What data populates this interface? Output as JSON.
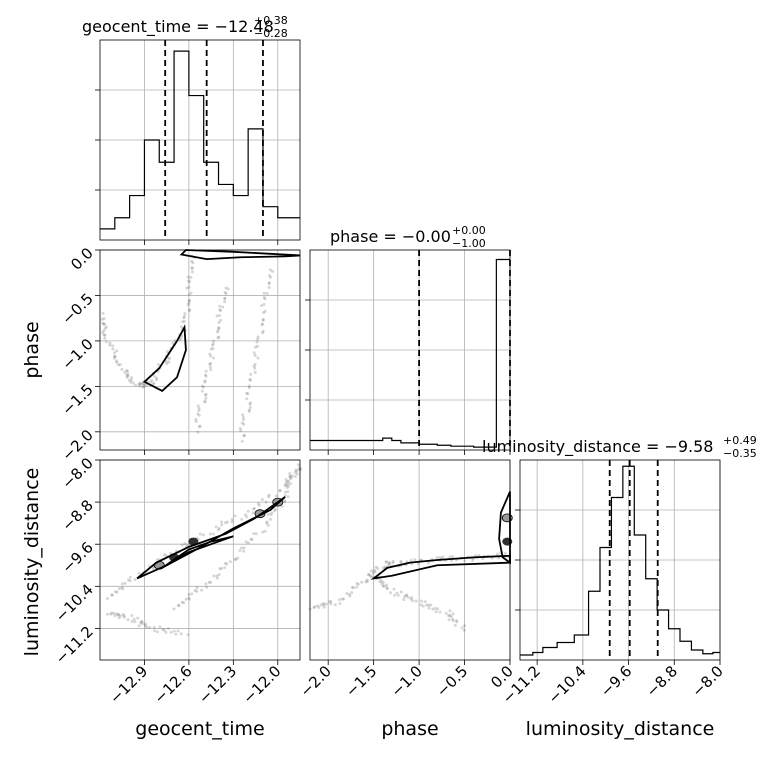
{
  "chart_data": [
    {
      "type": "histogram",
      "title_param": "geocent_time",
      "title_value": "−12.48",
      "title_plus": "+0.38",
      "title_minus": "−0.28",
      "x": [
        -13.15,
        -13.05,
        -12.95,
        -12.85,
        -12.75,
        -12.65,
        -12.55,
        -12.45,
        -12.35,
        -12.25,
        -12.15,
        -12.05,
        -11.95
      ],
      "values": [
        1,
        2,
        4,
        9,
        7,
        17,
        13,
        7,
        5,
        4,
        10,
        3,
        2
      ],
      "quantiles": [
        -12.76,
        -12.48,
        -12.1
      ],
      "xlim": [
        -13.2,
        -11.85
      ],
      "ymax": 18
    },
    {
      "type": "histogram",
      "title_param": "phase",
      "title_value": "−0.00",
      "title_plus": "+0.00",
      "title_minus": "−1.00",
      "x": [
        -1.45,
        -1.35,
        -1.25,
        -1.15,
        -1.05,
        -0.95,
        -0.85,
        -0.75,
        -0.55,
        -0.25,
        -0.05
      ],
      "values": [
        2,
        2.5,
        2,
        1.5,
        1.5,
        1.2,
        1.2,
        1,
        0.8,
        0.6,
        40
      ],
      "quantiles": [
        -1.0,
        -0.0
      ],
      "xlim": [
        -2.2,
        0.0
      ],
      "ymax": 42
    },
    {
      "type": "histogram",
      "title_param": "luminosity_distance",
      "title_value": "−9.58",
      "title_plus": "+0.49",
      "title_minus": "−0.35",
      "x": [
        -11.35,
        -11.2,
        -11.0,
        -10.7,
        -10.4,
        -10.2,
        -10.0,
        -9.8,
        -9.6,
        -9.4,
        -9.2,
        -9.0,
        -8.8,
        -8.6,
        -8.4,
        -8.2,
        -8.05
      ],
      "values": [
        0.4,
        0.6,
        1,
        1.4,
        2,
        5.5,
        9,
        13,
        15.5,
        10,
        6.5,
        4,
        2.5,
        1.5,
        0.8,
        0.5,
        0.6
      ],
      "quantiles": [
        -9.93,
        -9.58,
        -9.09
      ],
      "xlim": [
        -11.5,
        -8.0
      ],
      "ymax": 16
    },
    {
      "type": "scatter",
      "x_param": "geocent_time",
      "y_param": "phase",
      "xlim": [
        -13.2,
        -11.85
      ],
      "ylim": [
        -2.2,
        0.0
      ],
      "curves": [
        [
          [
            -12.58,
            -0.05
          ],
          [
            -12.6,
            -0.5
          ],
          [
            -12.64,
            -0.9
          ],
          [
            -12.75,
            -1.2
          ],
          [
            -12.85,
            -1.45
          ],
          [
            -12.95,
            -1.5
          ],
          [
            -13.05,
            -1.3
          ],
          [
            -13.15,
            -1.0
          ],
          [
            -13.2,
            -0.7
          ]
        ],
        [
          [
            -12.35,
            -0.4
          ],
          [
            -12.4,
            -0.8
          ],
          [
            -12.45,
            -1.2
          ],
          [
            -12.5,
            -1.6
          ],
          [
            -12.55,
            -2.0
          ]
        ],
        [
          [
            -12.05,
            -0.2
          ],
          [
            -12.1,
            -0.7
          ],
          [
            -12.15,
            -1.2
          ],
          [
            -12.2,
            -1.7
          ],
          [
            -12.25,
            -2.1
          ]
        ]
      ],
      "contours": [
        [
          [
            -12.78,
            -1.55
          ],
          [
            -12.9,
            -1.45
          ],
          [
            -12.8,
            -1.3
          ],
          [
            -12.68,
            -1.0
          ],
          [
            -12.63,
            -0.85
          ],
          [
            -12.62,
            -1.1
          ],
          [
            -12.68,
            -1.4
          ]
        ],
        [
          [
            -12.65,
            -0.05
          ],
          [
            -12.48,
            -0.1
          ],
          [
            -12.25,
            -0.08
          ],
          [
            -11.95,
            -0.07
          ],
          [
            -11.85,
            -0.06
          ],
          [
            -12.3,
            -0.02
          ],
          [
            -12.62,
            0.0
          ]
        ]
      ]
    },
    {
      "type": "scatter",
      "x_param": "geocent_time",
      "y_param": "luminosity_distance",
      "xlim": [
        -13.2,
        -11.85
      ],
      "ylim": [
        -11.8,
        -8.0
      ],
      "curves": [
        [
          [
            -13.15,
            -10.6
          ],
          [
            -12.95,
            -10.2
          ],
          [
            -12.7,
            -9.75
          ],
          [
            -12.45,
            -9.35
          ],
          [
            -12.2,
            -9.0
          ],
          [
            -11.95,
            -8.5
          ],
          [
            -11.85,
            -8.1
          ]
        ],
        [
          [
            -12.7,
            -10.8
          ],
          [
            -12.5,
            -10.4
          ],
          [
            -12.3,
            -9.9
          ],
          [
            -12.1,
            -9.3
          ],
          [
            -11.95,
            -8.7
          ],
          [
            -11.87,
            -8.1
          ]
        ],
        [
          [
            -13.15,
            -10.9
          ],
          [
            -13.0,
            -11.0
          ],
          [
            -12.85,
            -11.2
          ],
          [
            -12.6,
            -11.3
          ]
        ]
      ],
      "contours": [
        [
          [
            -12.95,
            -10.25
          ],
          [
            -12.82,
            -9.95
          ],
          [
            -12.6,
            -9.65
          ],
          [
            -12.35,
            -9.4
          ],
          [
            -12.15,
            -9.1
          ],
          [
            -11.95,
            -8.7
          ],
          [
            -12.05,
            -8.95
          ],
          [
            -12.3,
            -9.3
          ],
          [
            -12.55,
            -9.7
          ],
          [
            -12.75,
            -10.0
          ]
        ],
        [
          [
            -12.78,
            -10.05
          ],
          [
            -12.6,
            -9.75
          ],
          [
            -12.45,
            -9.6
          ],
          [
            -12.3,
            -9.45
          ],
          [
            -12.45,
            -9.55
          ],
          [
            -12.6,
            -9.7
          ]
        ]
      ],
      "blobs": [
        [
          -12.57,
          -9.55,
          "dark"
        ],
        [
          -12.7,
          -9.85,
          "dark"
        ],
        [
          -12.8,
          -10.0,
          "light"
        ],
        [
          -12.12,
          -9.02,
          "light"
        ],
        [
          -12.0,
          -8.8,
          "light"
        ]
      ]
    },
    {
      "type": "scatter",
      "x_param": "phase",
      "y_param": "luminosity_distance",
      "xlim": [
        -2.2,
        0.0
      ],
      "ylim": [
        -11.8,
        -8.0
      ],
      "curves": [
        [
          [
            -2.2,
            -10.8
          ],
          [
            -1.9,
            -10.7
          ],
          [
            -1.6,
            -10.3
          ],
          [
            -1.4,
            -10.0
          ],
          [
            -1.2,
            -9.95
          ],
          [
            -0.8,
            -9.9
          ],
          [
            -0.4,
            -9.85
          ],
          [
            0.0,
            -9.8
          ]
        ],
        [
          [
            -1.5,
            -10.2
          ],
          [
            -1.3,
            -10.5
          ],
          [
            -1.0,
            -10.7
          ],
          [
            -0.7,
            -10.9
          ],
          [
            -0.5,
            -11.2
          ]
        ]
      ],
      "contours": [
        [
          [
            -1.5,
            -10.25
          ],
          [
            -1.35,
            -10.05
          ],
          [
            -1.1,
            -9.95
          ],
          [
            -0.8,
            -9.9
          ],
          [
            -0.4,
            -9.85
          ],
          [
            0.0,
            -9.82
          ],
          [
            0.0,
            -9.95
          ],
          [
            -0.8,
            -10.0
          ],
          [
            -1.3,
            -10.2
          ]
        ],
        [
          [
            0.0,
            -8.6
          ],
          [
            -0.1,
            -9.0
          ],
          [
            -0.12,
            -9.5
          ],
          [
            -0.08,
            -9.85
          ],
          [
            0.0,
            -9.95
          ]
        ]
      ],
      "blobs": [
        [
          -0.03,
          -9.55,
          "dark"
        ],
        [
          -0.03,
          -9.1,
          "light"
        ]
      ]
    }
  ],
  "axes": {
    "geocent_time": {
      "label": "geocent_time",
      "ticks": [
        -12.9,
        -12.6,
        -12.3,
        -12.0
      ],
      "tick_labels": [
        "−12.9",
        "−12.6",
        "−12.3",
        "−12.0"
      ]
    },
    "phase_x": {
      "label": "phase",
      "ticks": [
        -2.0,
        -1.5,
        -1.0,
        -0.5,
        0.0
      ],
      "tick_labels": [
        "−2.0",
        "−1.5",
        "−1.0",
        "−0.5",
        "0.0"
      ]
    },
    "phase_y": {
      "label": "phase",
      "ticks": [
        0.0,
        -0.5,
        -1.0,
        -1.5,
        -2.0
      ],
      "tick_labels": [
        "0.0",
        "−0.5",
        "−1.0",
        "−1.5",
        "−2.0"
      ]
    },
    "luminosity_distance_x": {
      "label": "luminosity_distance",
      "ticks": [
        -11.2,
        -10.4,
        -9.6,
        -8.8,
        -8.0
      ],
      "tick_labels": [
        "−11.2",
        "−10.4",
        "−9.6",
        "−8.8",
        "−8.0"
      ]
    },
    "luminosity_distance_y": {
      "label": "luminosity_distance",
      "ticks": [
        -8.0,
        -8.8,
        -9.6,
        -10.4,
        -11.2
      ],
      "tick_labels": [
        "−8.0",
        "−8.8",
        "−9.6",
        "−10.4",
        "−11.2"
      ]
    }
  }
}
